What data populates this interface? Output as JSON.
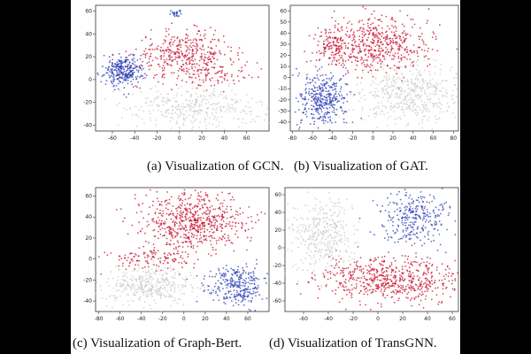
{
  "colors": {
    "red": "#c8102e",
    "blue": "#2b3fb5",
    "gray": "#c9c9c9"
  },
  "chart_data": [
    {
      "type": "scatter",
      "caption": "(a)  Visualization of GCN.",
      "xlim": [
        -75,
        80
      ],
      "ylim": [
        -45,
        65
      ],
      "xticks": [
        -60,
        -40,
        -20,
        0,
        20,
        40,
        60
      ],
      "yticks": [
        -40,
        -20,
        0,
        20,
        40,
        60
      ],
      "clusters": [
        {
          "class": "red",
          "cx": 5,
          "cy": 22,
          "sx": 22,
          "sy": 10,
          "n": 380
        },
        {
          "class": "red",
          "cx": 30,
          "cy": 5,
          "sx": 20,
          "sy": 6,
          "n": 90
        },
        {
          "class": "blue",
          "cx": -50,
          "cy": 8,
          "sx": 9,
          "sy": 7,
          "n": 300
        },
        {
          "class": "blue",
          "cx": -2,
          "cy": 58,
          "sx": 2,
          "sy": 1.5,
          "n": 25
        },
        {
          "class": "gray",
          "cx": 15,
          "cy": -25,
          "sx": 30,
          "sy": 9,
          "n": 360
        }
      ]
    },
    {
      "type": "scatter",
      "caption": "(b)  Visualization of GAT.",
      "xlim": [
        -82,
        85
      ],
      "ylim": [
        -48,
        65
      ],
      "xticks": [
        -80,
        -60,
        -40,
        -20,
        0,
        20,
        40,
        60,
        80
      ],
      "yticks": [
        -40,
        -30,
        -20,
        -10,
        0,
        10,
        20,
        30,
        40,
        50,
        60
      ],
      "clusters": [
        {
          "class": "red",
          "cx": 5,
          "cy": 30,
          "sx": 25,
          "sy": 13,
          "n": 520
        },
        {
          "class": "red",
          "cx": -40,
          "cy": 28,
          "sx": 7,
          "sy": 8,
          "n": 120
        },
        {
          "class": "blue",
          "cx": -50,
          "cy": -20,
          "sx": 12,
          "sy": 12,
          "n": 380
        },
        {
          "class": "gray",
          "cx": 35,
          "cy": -15,
          "sx": 25,
          "sy": 14,
          "n": 480
        }
      ]
    },
    {
      "type": "scatter",
      "caption": "(c)  Visualization of Graph-Bert.",
      "xlim": [
        -83,
        80
      ],
      "ylim": [
        -50,
        68
      ],
      "xticks": [
        -80,
        -60,
        -40,
        -20,
        0,
        20,
        40,
        60
      ],
      "yticks": [
        -40,
        -20,
        0,
        20,
        40,
        60
      ],
      "clusters": [
        {
          "class": "red",
          "cx": 10,
          "cy": 35,
          "sx": 25,
          "sy": 15,
          "n": 650
        },
        {
          "class": "red",
          "cx": -30,
          "cy": 0,
          "sx": 22,
          "sy": 5,
          "n": 120
        },
        {
          "class": "blue",
          "cx": 50,
          "cy": -25,
          "sx": 14,
          "sy": 10,
          "n": 300
        },
        {
          "class": "gray",
          "cx": -35,
          "cy": -25,
          "sx": 22,
          "sy": 9,
          "n": 380
        }
      ]
    },
    {
      "type": "scatter",
      "caption": "(d)  Visualization of TransGNN.",
      "xlim": [
        -75,
        65
      ],
      "ylim": [
        -72,
        68
      ],
      "xticks": [
        -60,
        -40,
        -20,
        0,
        20,
        40,
        60
      ],
      "yticks": [
        -60,
        -40,
        -20,
        0,
        20,
        40,
        60
      ],
      "clusters": [
        {
          "class": "red",
          "cx": 10,
          "cy": -35,
          "sx": 28,
          "sy": 13,
          "n": 620
        },
        {
          "class": "blue",
          "cx": 30,
          "cy": 35,
          "sx": 14,
          "sy": 16,
          "n": 300
        },
        {
          "class": "gray",
          "cx": -45,
          "cy": 15,
          "sx": 12,
          "sy": 22,
          "n": 380
        }
      ]
    }
  ]
}
